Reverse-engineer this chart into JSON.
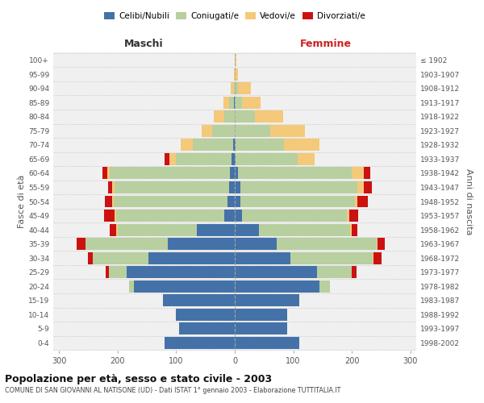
{
  "age_groups": [
    "0-4",
    "5-9",
    "10-14",
    "15-19",
    "20-24",
    "25-29",
    "30-34",
    "35-39",
    "40-44",
    "45-49",
    "50-54",
    "55-59",
    "60-64",
    "65-69",
    "70-74",
    "75-79",
    "80-84",
    "85-89",
    "90-94",
    "95-99",
    "100+"
  ],
  "birth_years": [
    "1998-2002",
    "1993-1997",
    "1988-1992",
    "1983-1987",
    "1978-1982",
    "1973-1977",
    "1968-1972",
    "1963-1967",
    "1958-1962",
    "1953-1957",
    "1948-1952",
    "1943-1947",
    "1938-1942",
    "1933-1937",
    "1928-1932",
    "1923-1927",
    "1918-1922",
    "1913-1917",
    "1908-1912",
    "1903-1907",
    "≤ 1902"
  ],
  "colors": {
    "celibe": "#4472a8",
    "coniugato": "#b8cfa0",
    "vedovo": "#f5c97a",
    "divorziato": "#cc1111"
  },
  "male": {
    "celibe": [
      120,
      95,
      100,
      122,
      172,
      185,
      148,
      115,
      65,
      18,
      12,
      10,
      8,
      5,
      3,
      0,
      0,
      2,
      0,
      0,
      0
    ],
    "coniugato": [
      0,
      0,
      0,
      0,
      8,
      30,
      95,
      140,
      135,
      185,
      195,
      195,
      205,
      95,
      68,
      38,
      18,
      7,
      2,
      0,
      0
    ],
    "vedovo": [
      0,
      0,
      0,
      0,
      0,
      0,
      0,
      0,
      2,
      2,
      3,
      4,
      5,
      12,
      22,
      18,
      18,
      10,
      5,
      2,
      0
    ],
    "divorziato": [
      0,
      0,
      0,
      0,
      0,
      5,
      8,
      15,
      12,
      18,
      12,
      8,
      8,
      8,
      0,
      0,
      0,
      0,
      0,
      0,
      0
    ]
  },
  "female": {
    "nubile": [
      110,
      90,
      90,
      110,
      145,
      140,
      95,
      72,
      42,
      12,
      10,
      10,
      5,
      2,
      2,
      0,
      0,
      0,
      0,
      0,
      0
    ],
    "coniugata": [
      0,
      0,
      0,
      0,
      18,
      60,
      140,
      170,
      155,
      180,
      195,
      200,
      195,
      105,
      82,
      60,
      35,
      12,
      5,
      0,
      0
    ],
    "vedova": [
      0,
      0,
      0,
      0,
      0,
      0,
      2,
      2,
      3,
      4,
      5,
      10,
      20,
      30,
      60,
      60,
      48,
      32,
      22,
      6,
      3
    ],
    "divorziata": [
      0,
      0,
      0,
      0,
      0,
      8,
      14,
      12,
      10,
      15,
      18,
      14,
      12,
      0,
      0,
      0,
      0,
      0,
      0,
      0,
      0
    ]
  },
  "xlim": 310,
  "title": "Popolazione per età, sesso e stato civile - 2003",
  "subtitle": "COMUNE DI SAN GIOVANNI AL NATISONE (UD) - Dati ISTAT 1° gennaio 2003 - Elaborazione TUTTITALIA.IT",
  "ylabel_left": "Fasce di età",
  "ylabel_right": "Anni di nascita",
  "xlabel_left": "Maschi",
  "xlabel_right": "Femmine",
  "bg_color": "#ffffff",
  "plot_bg_color": "#f0f0f0",
  "grid_color": "#cccccc",
  "bar_height": 0.85
}
